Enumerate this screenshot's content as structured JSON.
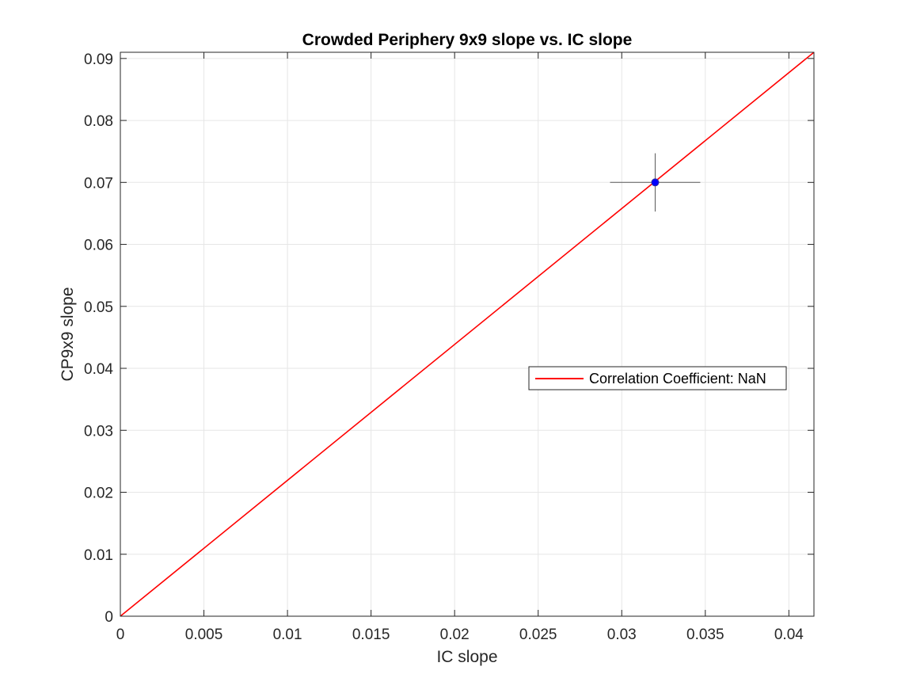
{
  "chart_data": {
    "type": "scatter",
    "title": "Crowded Periphery 9x9 slope vs. IC slope",
    "xlabel": "IC slope",
    "ylabel": "CP9x9 slope",
    "xlim": [
      0,
      0.0415
    ],
    "ylim": [
      0,
      0.091
    ],
    "x_ticks": [
      0,
      0.005,
      0.01,
      0.015,
      0.02,
      0.025,
      0.03,
      0.035,
      0.04
    ],
    "x_tick_labels": [
      "0",
      "0.005",
      "0.01",
      "0.015",
      "0.02",
      "0.025",
      "0.03",
      "0.035",
      "0.04"
    ],
    "y_ticks": [
      0,
      0.01,
      0.02,
      0.03,
      0.04,
      0.05,
      0.06,
      0.07,
      0.08,
      0.09
    ],
    "y_tick_labels": [
      "0",
      "0.01",
      "0.02",
      "0.03",
      "0.04",
      "0.05",
      "0.06",
      "0.07",
      "0.08",
      "0.09"
    ],
    "grid": true,
    "points": [
      {
        "x": 0.032,
        "y": 0.07,
        "x_err": 0.0027,
        "y_err": 0.0047
      }
    ],
    "fit_line": {
      "label": "Correlation Coefficient:  NaN",
      "x": [
        0,
        0.0415
      ],
      "y": [
        0,
        0.091
      ]
    },
    "legend": {
      "entries": [
        "Correlation Coefficient:  NaN"
      ],
      "location": "center-right"
    },
    "colors": {
      "fit_line": "#ff0000",
      "point_face": "#0000ff",
      "errorbar": "#595959",
      "grid": "#e6e6e6",
      "axes": "#262626"
    }
  }
}
